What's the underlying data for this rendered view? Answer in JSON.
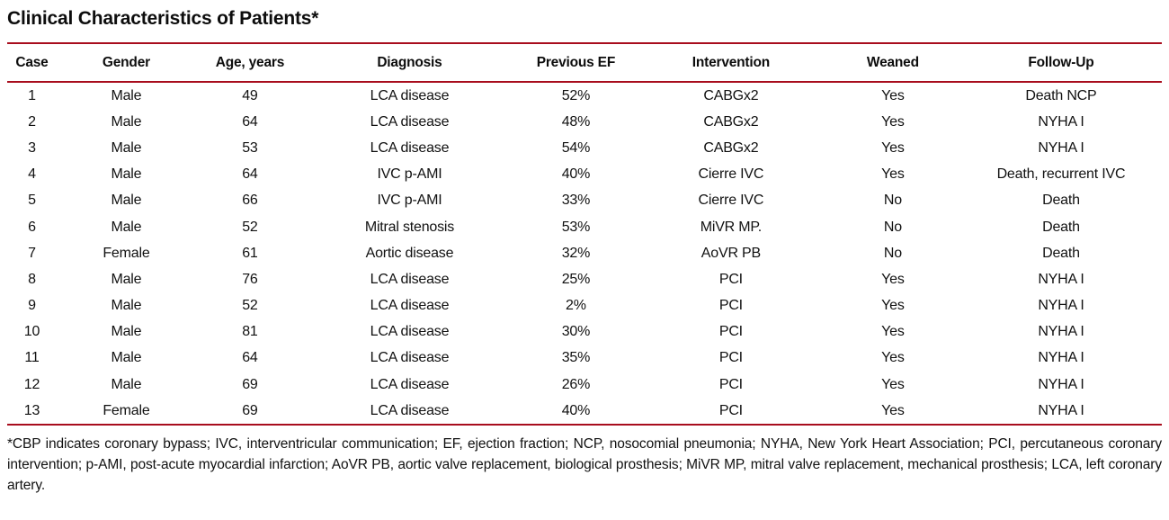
{
  "title": "Clinical Characteristics of Patients*",
  "colors": {
    "rule_red": "#a80d1d",
    "text": "#111111",
    "background": "#ffffff"
  },
  "table": {
    "columns": [
      {
        "key": "case",
        "label": "Case"
      },
      {
        "key": "gender",
        "label": "Gender"
      },
      {
        "key": "age",
        "label": "Age, years"
      },
      {
        "key": "diagnosis",
        "label": "Diagnosis"
      },
      {
        "key": "previous_ef",
        "label": "Previous EF"
      },
      {
        "key": "intervention",
        "label": "Intervention"
      },
      {
        "key": "weaned",
        "label": "Weaned"
      },
      {
        "key": "follow_up",
        "label": "Follow-Up"
      }
    ],
    "col_widths": [
      "4.28%",
      "12.07%",
      "9.35%",
      "18.30%",
      "10.51%",
      "16.36%",
      "11.68%",
      "17.45%"
    ],
    "rows": [
      {
        "case": "1",
        "gender": "Male",
        "age": "49",
        "diagnosis": "LCA disease",
        "previous_ef": "52%",
        "intervention": "CABGx2",
        "weaned": "Yes",
        "follow_up": "Death NCP"
      },
      {
        "case": "2",
        "gender": "Male",
        "age": "64",
        "diagnosis": "LCA disease",
        "previous_ef": "48%",
        "intervention": "CABGx2",
        "weaned": "Yes",
        "follow_up": "NYHA I"
      },
      {
        "case": "3",
        "gender": "Male",
        "age": "53",
        "diagnosis": "LCA disease",
        "previous_ef": "54%",
        "intervention": "CABGx2",
        "weaned": "Yes",
        "follow_up": "NYHA I"
      },
      {
        "case": "4",
        "gender": "Male",
        "age": "64",
        "diagnosis": "IVC p-AMI",
        "previous_ef": "40%",
        "intervention": "Cierre IVC",
        "weaned": "Yes",
        "follow_up": "Death, recurrent IVC"
      },
      {
        "case": "5",
        "gender": "Male",
        "age": "66",
        "diagnosis": "IVC p-AMI",
        "previous_ef": "33%",
        "intervention": "Cierre IVC",
        "weaned": "No",
        "follow_up": "Death"
      },
      {
        "case": "6",
        "gender": "Male",
        "age": "52",
        "diagnosis": "Mitral stenosis",
        "previous_ef": "53%",
        "intervention": "MiVR MP.",
        "weaned": "No",
        "follow_up": "Death"
      },
      {
        "case": "7",
        "gender": "Female",
        "age": "61",
        "diagnosis": "Aortic disease",
        "previous_ef": "32%",
        "intervention": "AoVR PB",
        "weaned": "No",
        "follow_up": "Death"
      },
      {
        "case": "8",
        "gender": "Male",
        "age": "76",
        "diagnosis": "LCA disease",
        "previous_ef": "25%",
        "intervention": "PCI",
        "weaned": "Yes",
        "follow_up": "NYHA I"
      },
      {
        "case": "9",
        "gender": "Male",
        "age": "52",
        "diagnosis": "LCA disease",
        "previous_ef": "2%",
        "intervention": "PCI",
        "weaned": "Yes",
        "follow_up": "NYHA I"
      },
      {
        "case": "10",
        "gender": "Male",
        "age": "81",
        "diagnosis": "LCA disease",
        "previous_ef": "30%",
        "intervention": "PCI",
        "weaned": "Yes",
        "follow_up": "NYHA I"
      },
      {
        "case": "11",
        "gender": "Male",
        "age": "64",
        "diagnosis": "LCA disease",
        "previous_ef": "35%",
        "intervention": "PCI",
        "weaned": "Yes",
        "follow_up": "NYHA I"
      },
      {
        "case": "12",
        "gender": "Male",
        "age": "69",
        "diagnosis": "LCA disease",
        "previous_ef": "26%",
        "intervention": "PCI",
        "weaned": "Yes",
        "follow_up": "NYHA I"
      },
      {
        "case": "13",
        "gender": "Female",
        "age": "69",
        "diagnosis": "LCA disease",
        "previous_ef": "40%",
        "intervention": "PCI",
        "weaned": "Yes",
        "follow_up": "NYHA I"
      }
    ]
  },
  "footnote": "*CBP indicates coronary bypass; IVC, interventricular communication; EF, ejection fraction; NCP, nosocomial pneumonia; NYHA, New York Heart Association; PCI, percutaneous coronary intervention; p-AMI, post-acute myocardial infarction; AoVR PB, aortic valve replacement, biological prosthesis; MiVR MP, mitral valve replacement, mechanical prosthesis; LCA, left coronary artery."
}
